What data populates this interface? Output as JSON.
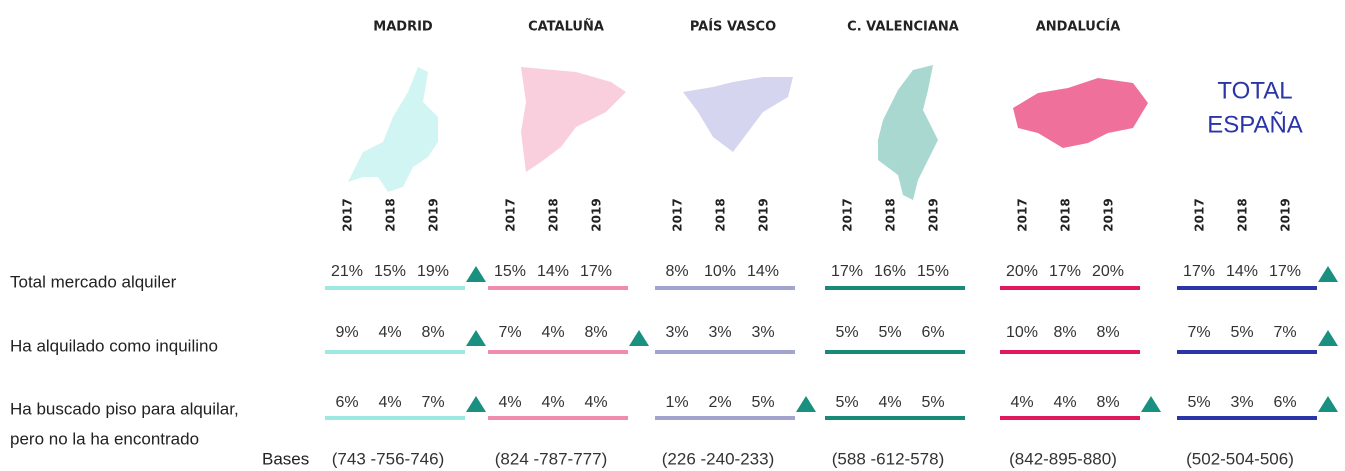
{
  "years": [
    "2017",
    "2018",
    "2019"
  ],
  "rows": [
    [
      "Total mercado alquiler"
    ],
    [
      "Ha alquilado como inquilino"
    ],
    [
      "Ha buscado piso para alquilar,",
      "pero no la ha encontrado"
    ]
  ],
  "bases_label": "Bases",
  "regions": [
    {
      "name": "MADRID",
      "map_color": "#d0f5f2",
      "line_color": "#9ee8e4",
      "values": [
        [
          "21%",
          "15%",
          "19%"
        ],
        [
          "9%",
          "4%",
          "8%"
        ],
        [
          "6%",
          "4%",
          "7%"
        ]
      ],
      "up": [
        true,
        true,
        true
      ],
      "bases": "(743 -756-746)"
    },
    {
      "name": "CATALUÑA",
      "map_color": "#f9cfdd",
      "line_color": "#f08caf",
      "values": [
        [
          "15%",
          "14%",
          "17%"
        ],
        [
          "7%",
          "4%",
          "8%"
        ],
        [
          "4%",
          "4%",
          "4%"
        ]
      ],
      "up": [
        false,
        true,
        false
      ],
      "bases": "(824 -787-777)"
    },
    {
      "name": "PAÍS VASCO",
      "map_color": "#d5d5ef",
      "line_color": "#a3a3d0",
      "values": [
        [
          "8%",
          "10%",
          "14%"
        ],
        [
          "3%",
          "3%",
          "3%"
        ],
        [
          "1%",
          "2%",
          "5%"
        ]
      ],
      "up": [
        false,
        false,
        true
      ],
      "bases": "(226 -240-233)"
    },
    {
      "name": "C. VALENCIANA",
      "map_color": "#a8d8cf",
      "line_color": "#1a8a78",
      "values": [
        [
          "17%",
          "16%",
          "15%"
        ],
        [
          "5%",
          "5%",
          "6%"
        ],
        [
          "5%",
          "4%",
          "5%"
        ]
      ],
      "up": [
        false,
        false,
        false
      ],
      "bases": "(588 -612-578)"
    },
    {
      "name": "ANDALUCÍA",
      "map_color": "#ef709a",
      "line_color": "#e0195a",
      "values": [
        [
          "20%",
          "17%",
          "20%"
        ],
        [
          "10%",
          "8%",
          "8%"
        ],
        [
          "4%",
          "4%",
          "8%"
        ]
      ],
      "up": [
        false,
        false,
        true
      ],
      "bases": "(842-895-880)"
    },
    {
      "title": [
        "TOTAL",
        "ESPAÑA"
      ],
      "title_color": "#2a35a8",
      "line_color": "#2a35a8",
      "values": [
        [
          "17%",
          "14%",
          "17%"
        ],
        [
          "7%",
          "5%",
          "7%"
        ],
        [
          "5%",
          "3%",
          "6%"
        ]
      ],
      "up": [
        true,
        true,
        true
      ],
      "bases": "(502-504-506)"
    }
  ],
  "arrow_color": "#1a9080"
}
